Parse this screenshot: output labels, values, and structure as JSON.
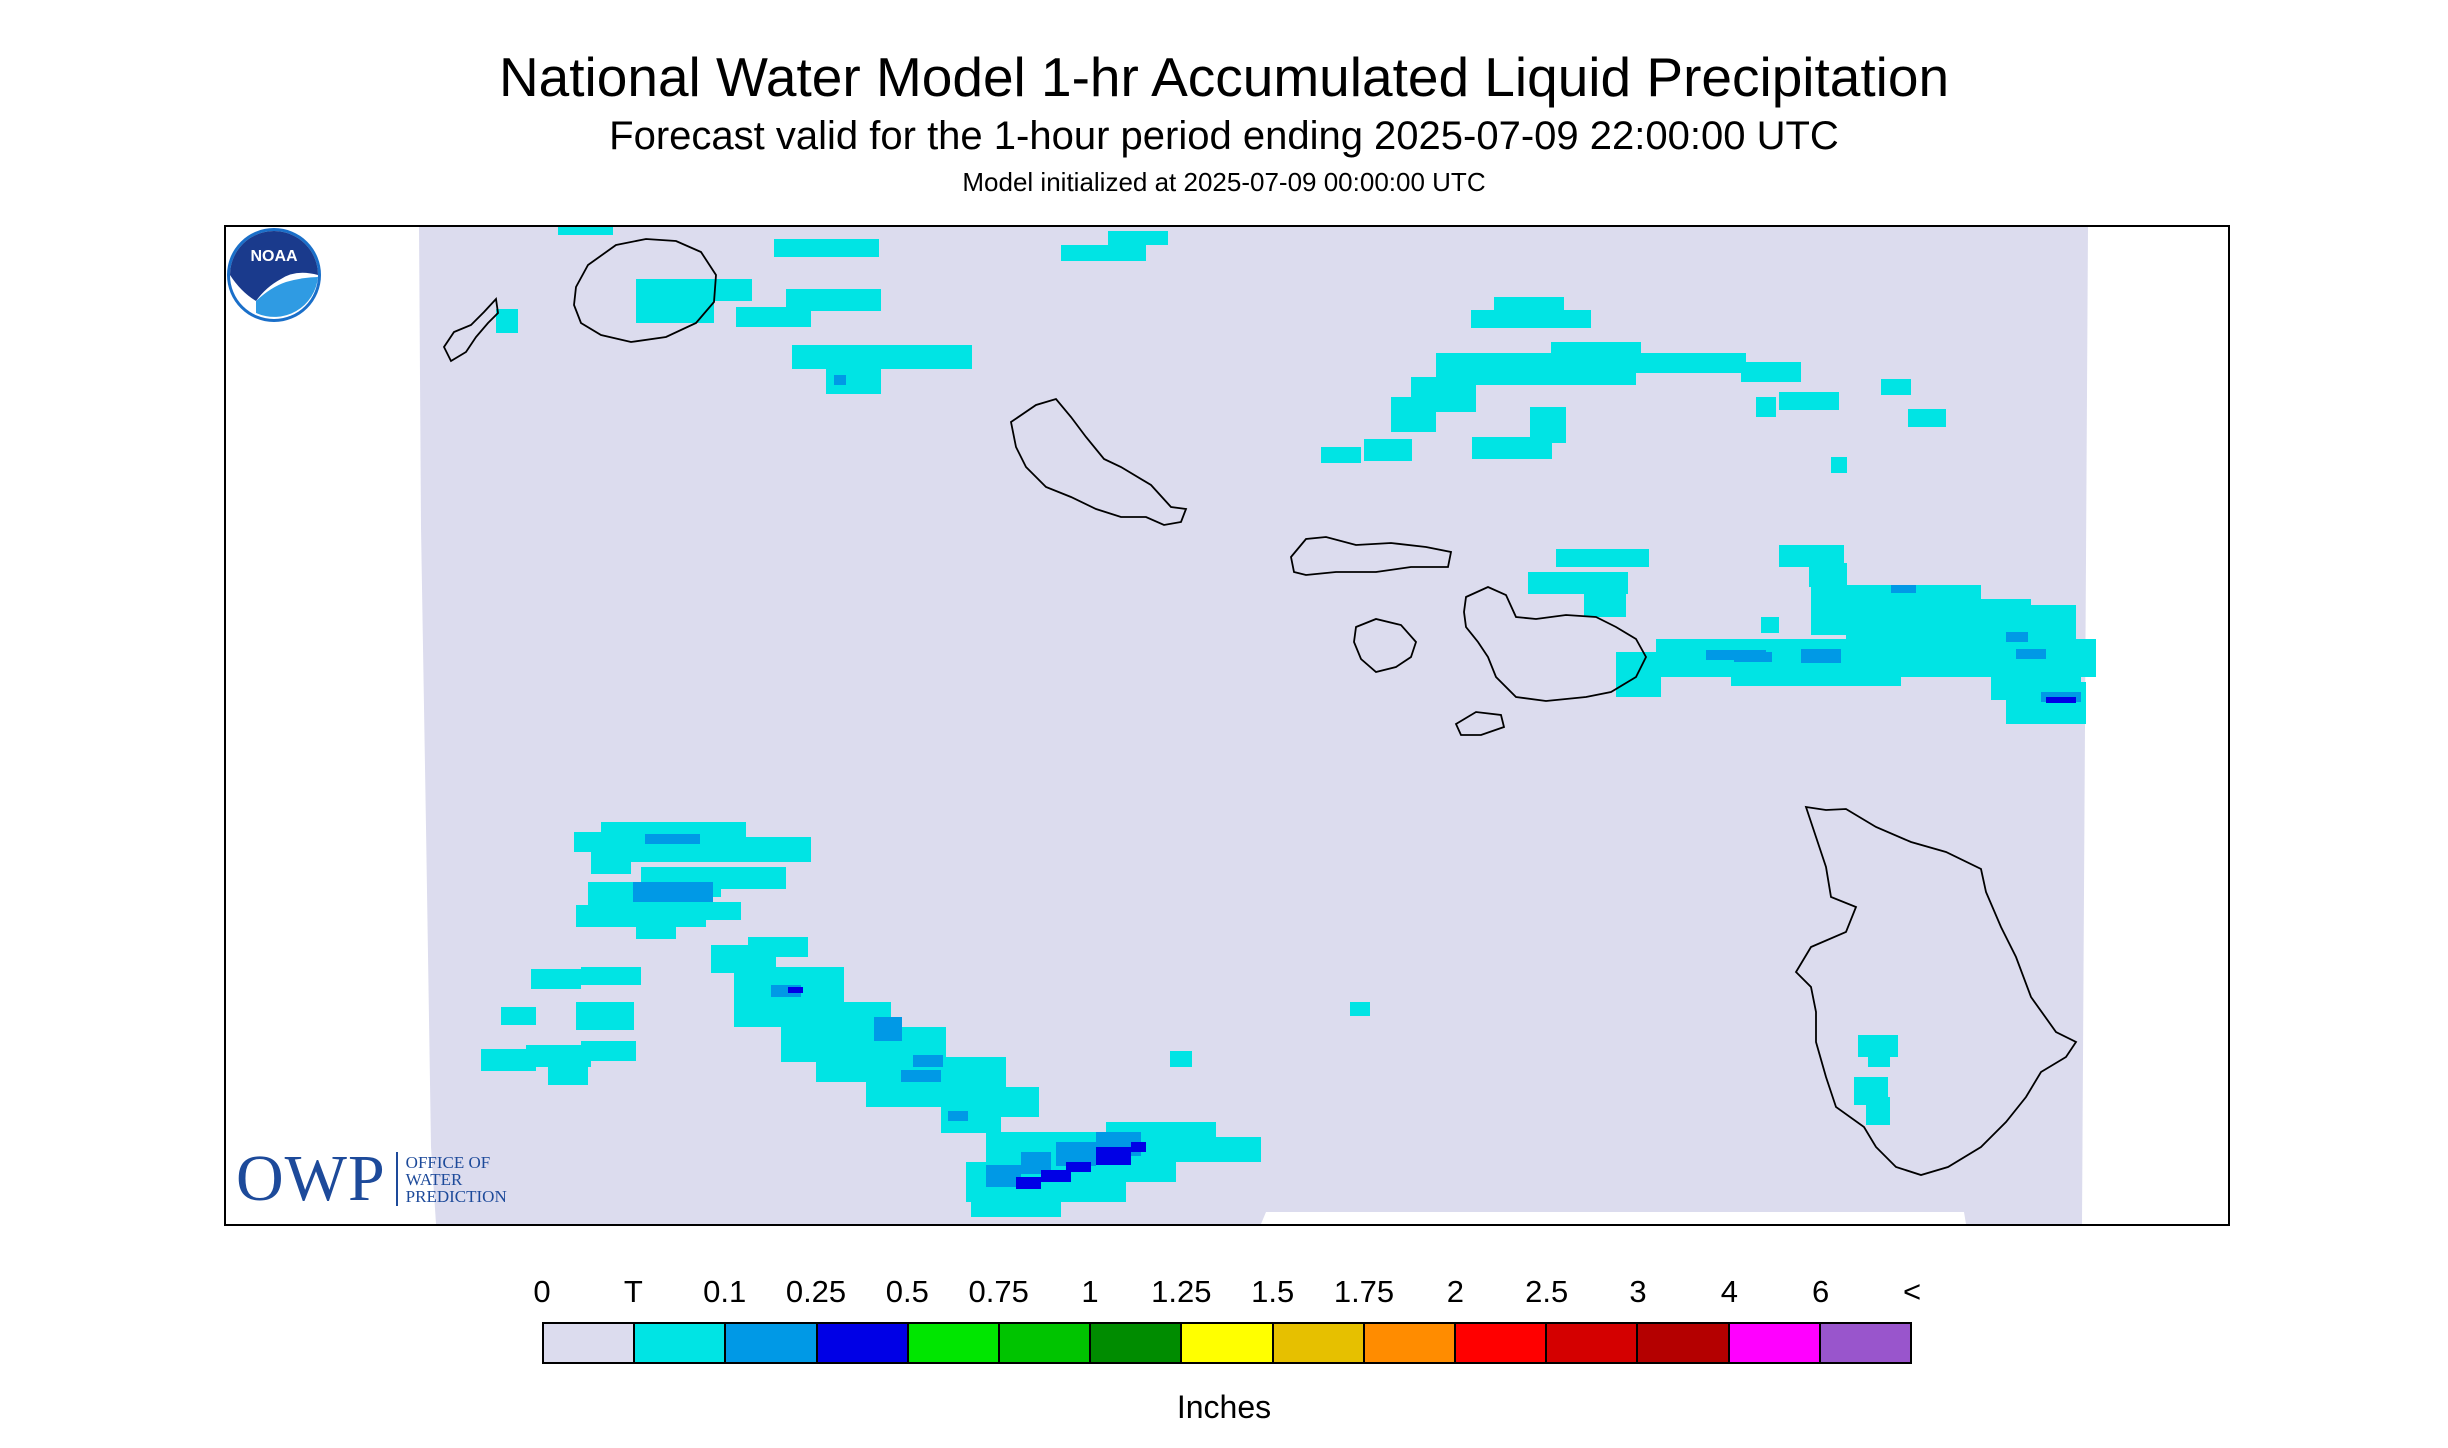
{
  "title": "National Water Model 1-hr Accumulated Liquid Precipitation",
  "subtitle": "Forecast valid for the 1-hour period ending 2025-07-09 22:00:00 UTC",
  "model_init": "Model initialized at 2025-07-09 00:00:00 UTC",
  "map": {
    "background_color": "#ffffff",
    "domain_fill": "#dcdcee",
    "coastline_color": "#000000",
    "islands": [
      "Niihau",
      "Kauai",
      "Oahu",
      "Molokai",
      "Lanai",
      "Maui",
      "Kahoolawe",
      "Hawaii"
    ]
  },
  "logos": {
    "owp": {
      "big": "OWP",
      "line1": "OFFICE OF",
      "line2": "WATER",
      "line3": "PREDICTION"
    },
    "noaa": "NOAA"
  },
  "legend": {
    "labels": [
      "0",
      "T",
      "0.1",
      "0.25",
      "0.5",
      "0.75",
      "1",
      "1.25",
      "1.5",
      "1.75",
      "2",
      "2.5",
      "3",
      "4",
      "6",
      "<"
    ],
    "colors": [
      "#dcdcee",
      "#00e4e4",
      "#0099e6",
      "#0000e6",
      "#00e600",
      "#00c400",
      "#008c00",
      "#ffff00",
      "#e6c000",
      "#ff8c00",
      "#ff0000",
      "#d40000",
      "#b40000",
      "#ff00ff",
      "#9955cc"
    ],
    "units": "Inches"
  }
}
